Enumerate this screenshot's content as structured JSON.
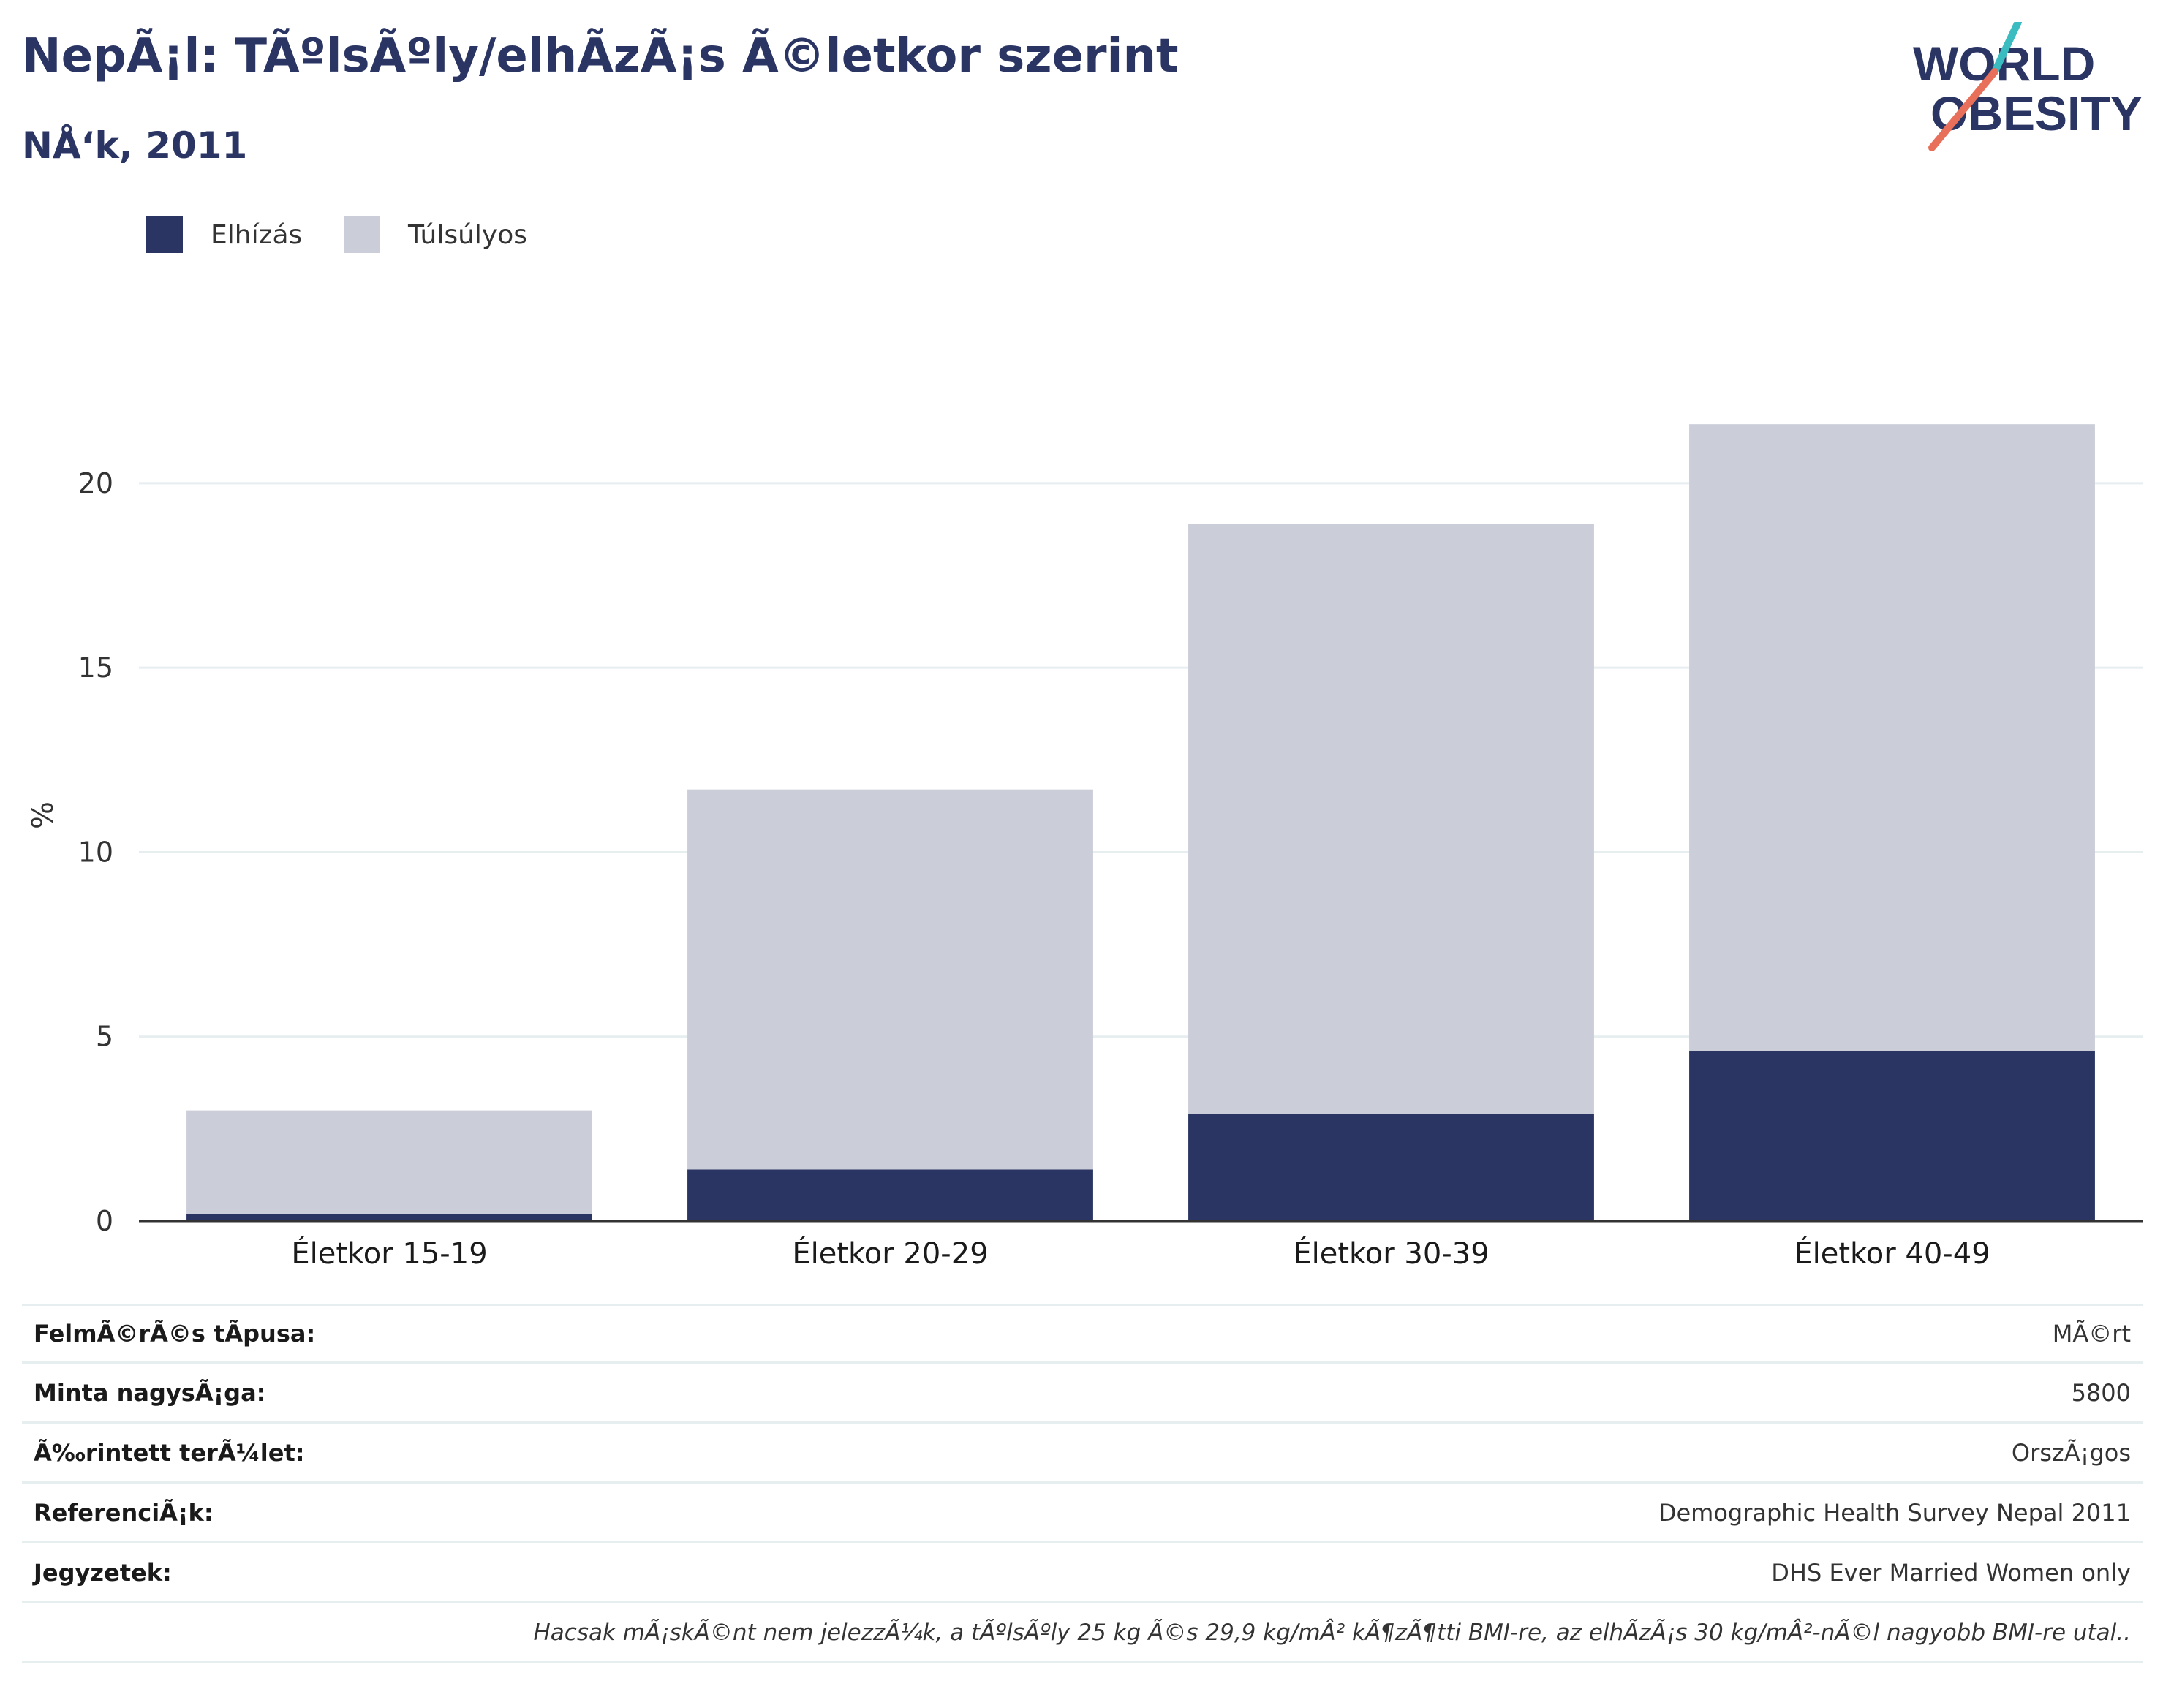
{
  "header": {
    "title": "NepÃ¡l: TÃºlsÃºly/elhÃ­zÃ¡s Ã©letkor szerint",
    "subtitle": "NÅ‘k, 2011"
  },
  "logo": {
    "line1": "WORLD",
    "line2": "OBESITY",
    "icon": "world-obesity-logo"
  },
  "colors": {
    "elhizas": "#2a3563",
    "tulsulyos": "#cbcdd8",
    "accent_teal": "#3bbcc1",
    "accent_coral": "#e8705a"
  },
  "legend": [
    {
      "label": "Elhízás",
      "color": "#2a3563"
    },
    {
      "label": "Túlsúlyos",
      "color": "#cbcdd8"
    }
  ],
  "chart_data": {
    "type": "bar",
    "stacked": true,
    "title": "NepÃ¡l: TÃºlsÃºly/elhÃ­zÃ¡s Ã©letkor szerint",
    "subtitle": "NÅ‘k, 2011",
    "ylabel": "%",
    "xlabel": "",
    "ylim": [
      0,
      22
    ],
    "yticks": [
      0,
      5,
      10,
      15,
      20
    ],
    "grid": true,
    "legend_position": "top-left",
    "categories": [
      "Életkor 15-19",
      "Életkor 20-29",
      "Életkor 30-39",
      "Életkor 40-49"
    ],
    "series": [
      {
        "name": "Elhízás",
        "values": [
          0.2,
          1.4,
          2.9,
          4.6
        ]
      },
      {
        "name": "Túlsúlyos",
        "values": [
          2.8,
          10.3,
          16.0,
          17.0
        ]
      }
    ]
  },
  "info_table": [
    {
      "key": "FelmÃ©rÃ©s tÃ­pusa:",
      "value": "MÃ©rt"
    },
    {
      "key": "Minta nagysÃ¡ga:",
      "value": "5800"
    },
    {
      "key": "Ã‰rintett terÃ¼let:",
      "value": "OrszÃ¡gos"
    },
    {
      "key": "ReferenciÃ¡k:",
      "value": "Demographic Health Survey Nepal 2011"
    },
    {
      "key": "Jegyzetek:",
      "value": "DHS Ever Married Women only"
    }
  ],
  "footnote": "Hacsak mÃ¡skÃ©nt nem jelezzÃ¼k, a tÃºlsÃºly 25 kg Ã©s 29,9 kg/mÂ² kÃ¶zÃ¶tti BMI-re, az elhÃ­zÃ¡s 30 kg/mÂ²-nÃ©l nagyobb BMI-re utal.."
}
